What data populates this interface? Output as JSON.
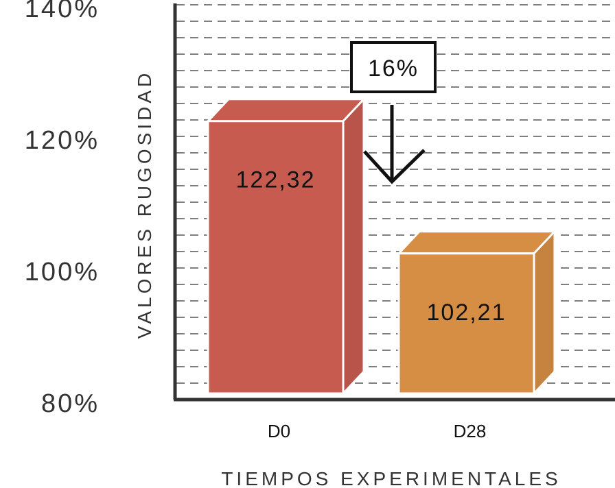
{
  "chart_data": {
    "type": "bar",
    "categories": [
      "D0",
      "D28"
    ],
    "values": [
      122.32,
      102.21
    ],
    "value_labels": [
      "122,32",
      "102,21"
    ],
    "ylabel": "VALORES RUGOSIDAD",
    "xlabel": "TIEMPOS EXPERIMENTALES",
    "ylim": [
      80,
      140
    ],
    "yticks": [
      80,
      100,
      120,
      140
    ],
    "ytick_labels": [
      "80%",
      "100%",
      "120%",
      "140%"
    ],
    "grid": true,
    "colors": [
      "#c85b4f",
      "#d68e45"
    ],
    "annotation": {
      "text": "16%",
      "arrow": "down"
    }
  }
}
